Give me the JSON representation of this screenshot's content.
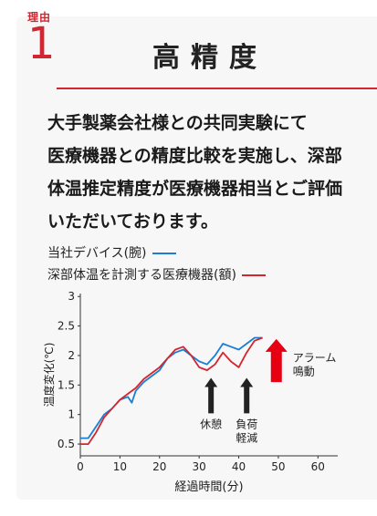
{
  "reason": {
    "label": "理由",
    "number": "1"
  },
  "title": "高精度",
  "body_lines": [
    "大手製薬会社様との共同実験にて",
    "医療機器との精度比較を実施し、深部",
    "体温推定精度が医療機器相当とご評価",
    "いただいております。"
  ],
  "colors": {
    "accent": "#d22630",
    "series_device": "#1a7fd4",
    "series_medical": "#d22630",
    "arrow_dark": "#222222",
    "arrow_alarm": "#e60012"
  },
  "chart_data": {
    "type": "line",
    "title": "",
    "xlabel": "経過時間(分)",
    "ylabel": "温度変化(℃)",
    "xlim": [
      0,
      65
    ],
    "ylim": [
      0.3,
      3.05
    ],
    "xticks": [
      0,
      10,
      20,
      30,
      40,
      50,
      60
    ],
    "yticks": [
      0.5,
      1,
      1.5,
      2,
      2.5,
      3
    ],
    "ytick_labels": [
      "0.5",
      "1",
      "1.5",
      "2",
      "2.5",
      "3"
    ],
    "grid": false,
    "legend_position": "top-left",
    "series": [
      {
        "name": "当社デバイス(腕)",
        "color": "#1a7fd4",
        "x": [
          0,
          2,
          4,
          6,
          8,
          10,
          12,
          13,
          14,
          16,
          18,
          20,
          22,
          24,
          26,
          28,
          30,
          32,
          34,
          36,
          38,
          40,
          42,
          44,
          46
        ],
        "y": [
          0.6,
          0.6,
          0.8,
          1.0,
          1.1,
          1.25,
          1.3,
          1.2,
          1.4,
          1.55,
          1.65,
          1.75,
          1.95,
          2.05,
          2.1,
          2.0,
          1.9,
          1.85,
          2.0,
          2.2,
          2.15,
          2.1,
          2.2,
          2.3,
          2.3
        ]
      },
      {
        "name": "深部体温を計測する医療機器(額)",
        "color": "#d22630",
        "x": [
          0,
          2,
          4,
          6,
          8,
          10,
          12,
          14,
          16,
          18,
          20,
          22,
          24,
          26,
          28,
          30,
          32,
          34,
          36,
          38,
          40,
          42,
          44,
          46
        ],
        "y": [
          0.5,
          0.5,
          0.7,
          0.95,
          1.1,
          1.25,
          1.35,
          1.45,
          1.6,
          1.7,
          1.8,
          1.95,
          2.1,
          2.15,
          2.0,
          1.8,
          1.75,
          1.85,
          2.05,
          1.9,
          1.8,
          2.05,
          2.25,
          2.3
        ]
      }
    ],
    "annotations": [
      {
        "label": "休憩",
        "x": 33,
        "kind": "dark"
      },
      {
        "label": "負荷\n軽減",
        "x": 42,
        "kind": "dark"
      },
      {
        "label": "アラーム\n鳴動",
        "x": 49.5,
        "kind": "alarm"
      }
    ]
  }
}
